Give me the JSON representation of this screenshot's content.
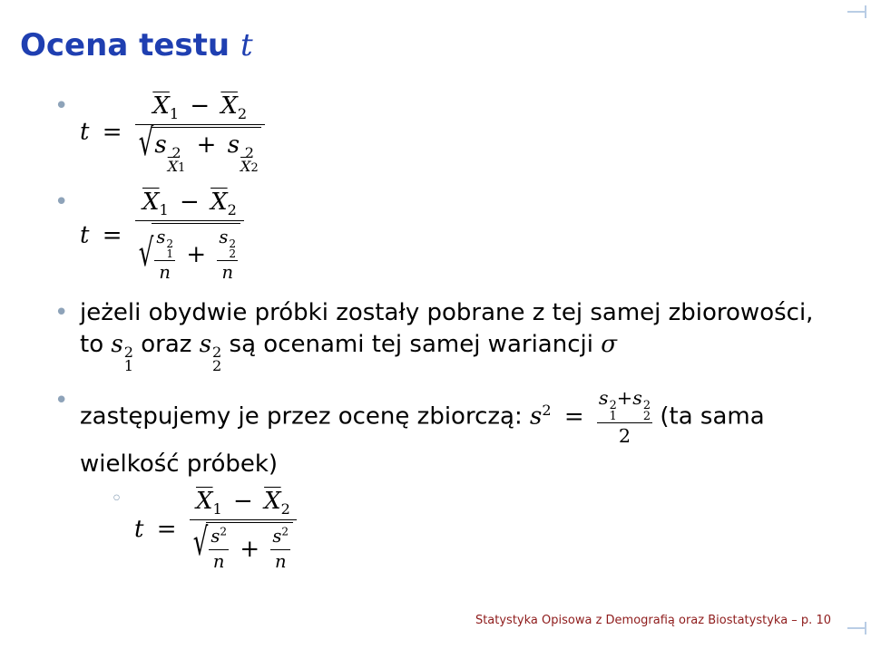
{
  "title": {
    "prefix": "Ocena testu ",
    "var": "t"
  },
  "colors": {
    "title": "#1f3fb1",
    "bullet": "#8ea3b9",
    "corner": "#b9cde5",
    "text": "#000000",
    "footer": "#8e1b1b",
    "background": "#ffffff"
  },
  "fonts": {
    "title_size": 34,
    "body_size": 26,
    "footer_size": 13
  },
  "bullets": [
    {
      "type": "formula",
      "tex": "t = (X̄1 − X̄2) / sqrt(s²_X̄1 + s²_X̄2)"
    },
    {
      "type": "formula",
      "tex": "t = (X̄1 − X̄2) / sqrt(s1²/n + s2²/n)"
    },
    {
      "type": "text",
      "pre": "jeżeli obydwie próbki zostały pobrane z tej samej zbiorowości, to ",
      "mid1_var": "s",
      "mid1_sub": "1",
      "mid1_sup": "2",
      "conj1": " oraz ",
      "mid2_var": "s",
      "mid2_sub": "2",
      "mid2_sup": "2",
      "post": " są ocenami tej samej wariancji ",
      "sigma": "σ"
    },
    {
      "type": "text2",
      "pre": "zastępujemy je przez ocenę zbiorczą: ",
      "lhs_var": "s",
      "lhs_sup": "2",
      "eq": " = ",
      "rhs_num": "s1² + s2²",
      "rhs_den": "2",
      "post": " (ta sama wielkość próbek)",
      "sub_formula": "t = (X̄1 − X̄2) / sqrt(s²/n + s²/n)"
    }
  ],
  "math": {
    "t": "t",
    "eq": "=",
    "minus": "−",
    "plus": "+",
    "X": "X",
    "s": "s",
    "n": "n",
    "d1": "1",
    "d2": "2",
    "sigma": "σ"
  },
  "footer": "Statystyka Opisowa z Demografią oraz Biostatystyka – p. 10"
}
